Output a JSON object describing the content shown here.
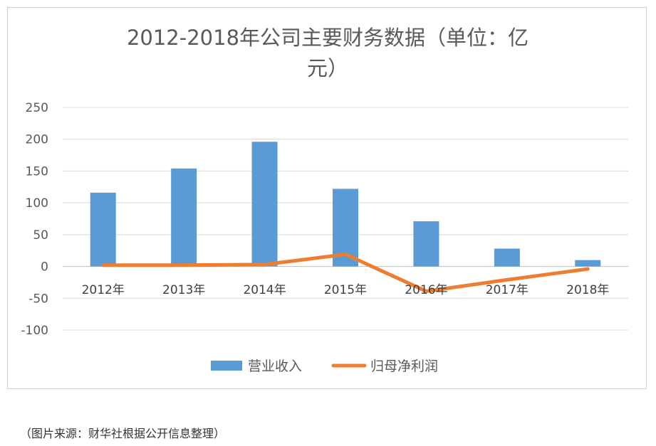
{
  "chart_data": {
    "type": "bar",
    "title": "2012-2018年公司主要财务数据（单位：亿元）",
    "title_lines": [
      "2012-2018年公司主要财务数据（单位：亿",
      "元）"
    ],
    "categories": [
      "2012年",
      "2013年",
      "2014年",
      "2015年",
      "2016年",
      "2017年",
      "2018年"
    ],
    "series": [
      {
        "name": "营业收入",
        "type": "bar",
        "color": "#5B9BD5",
        "values": [
          116,
          154,
          196,
          122,
          71,
          28,
          10
        ]
      },
      {
        "name": "归母净利润",
        "type": "line",
        "color": "#ED7D31",
        "values": [
          2,
          2,
          3,
          19,
          -39,
          -21,
          -4
        ]
      }
    ],
    "ylim": [
      -100,
      250
    ],
    "yticks": [
      -100,
      -50,
      0,
      50,
      100,
      150,
      200,
      250
    ],
    "grid": true,
    "legend_position": "bottom"
  },
  "caption": "（图片来源：财华社根据公开信息整理）"
}
